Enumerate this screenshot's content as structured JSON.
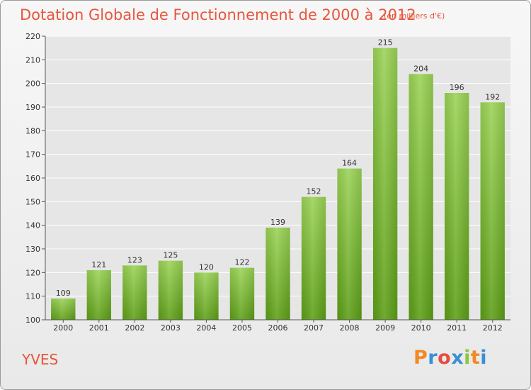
{
  "header": {
    "title": "Dotation Globale de Fonctionnement de 2000 à 2012",
    "unit": "(en milliers d'€)"
  },
  "footer": {
    "town": "YVES",
    "logo_text": "Proxiti",
    "logo_colors": [
      "#f08a24",
      "#3b8fd6",
      "#e84c3d",
      "#3b8fd6",
      "#8cc63f",
      "#f08a24",
      "#3b8fd6"
    ]
  },
  "colors": {
    "bar_top": "#9bd356",
    "bar_bottom": "#5c9e16",
    "title": "#e8553c",
    "grid": "#ffffff"
  },
  "chart_data": {
    "type": "bar",
    "title": "Dotation Globale de Fonctionnement de 2000 à 2012",
    "subtitle": "(en milliers d'€)",
    "xlabel": "",
    "ylabel": "",
    "categories": [
      "2000",
      "2001",
      "2002",
      "2003",
      "2004",
      "2005",
      "2006",
      "2007",
      "2008",
      "2009",
      "2010",
      "2011",
      "2012"
    ],
    "values": [
      109,
      121,
      123,
      125,
      120,
      122,
      139,
      152,
      164,
      215,
      204,
      196,
      192
    ],
    "ylim": [
      100,
      220
    ],
    "yticks": [
      100,
      110,
      120,
      130,
      140,
      150,
      160,
      170,
      180,
      190,
      200,
      210,
      220
    ],
    "grid": true
  }
}
